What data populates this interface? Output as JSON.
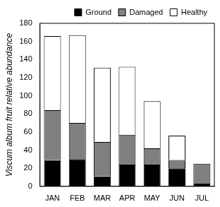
{
  "chart_data": {
    "type": "bar",
    "y_label": "Viscum album fruit relative abundance",
    "categories": [
      "JAN",
      "FEB",
      "MAR",
      "APR",
      "MAY",
      "JUN",
      "JUL"
    ],
    "series": [
      {
        "name": "Ground",
        "color": "#000000",
        "values": [
          29,
          30,
          11,
          24,
          24,
          20,
          3
        ]
      },
      {
        "name": "Damaged",
        "color": "#808080",
        "values": [
          55,
          40,
          38,
          33,
          18,
          9,
          22
        ]
      },
      {
        "name": "Healthy",
        "color": "#ffffff",
        "values": [
          82,
          97,
          82,
          75,
          52,
          27,
          0
        ]
      }
    ],
    "stacked": true,
    "ylim": [
      0,
      180
    ],
    "yticks": [
      0,
      20,
      40,
      60,
      80,
      100,
      120,
      140,
      160,
      180
    ],
    "grid": false,
    "legend": "top-right"
  }
}
